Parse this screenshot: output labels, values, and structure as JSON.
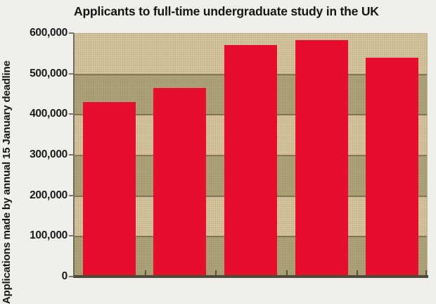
{
  "chart_data": {
    "type": "bar",
    "title": "Applicants to full-time undergraduate study in the UK",
    "ylabel": "Applications made by annual 15 January deadline",
    "xlabel": "",
    "categories": [
      "",
      "",
      "",
      "",
      ""
    ],
    "values": [
      430000,
      464000,
      570000,
      583000,
      540000
    ],
    "ylim": [
      0,
      600000
    ],
    "ytick_step": 100000,
    "ytick_labels": [
      "600,000",
      "500,000",
      "400,000",
      "300,000",
      "200,000",
      "100,000",
      "0"
    ],
    "legend": "none",
    "grid": "horizontal-bands",
    "colors": {
      "bar": "#e60d2d",
      "band_light": "#d6c59e",
      "band_dark": "#aea378",
      "background": "#f0efeb",
      "gridline": "#52492c",
      "axis": "#4e4a40",
      "text": "#141414"
    }
  }
}
